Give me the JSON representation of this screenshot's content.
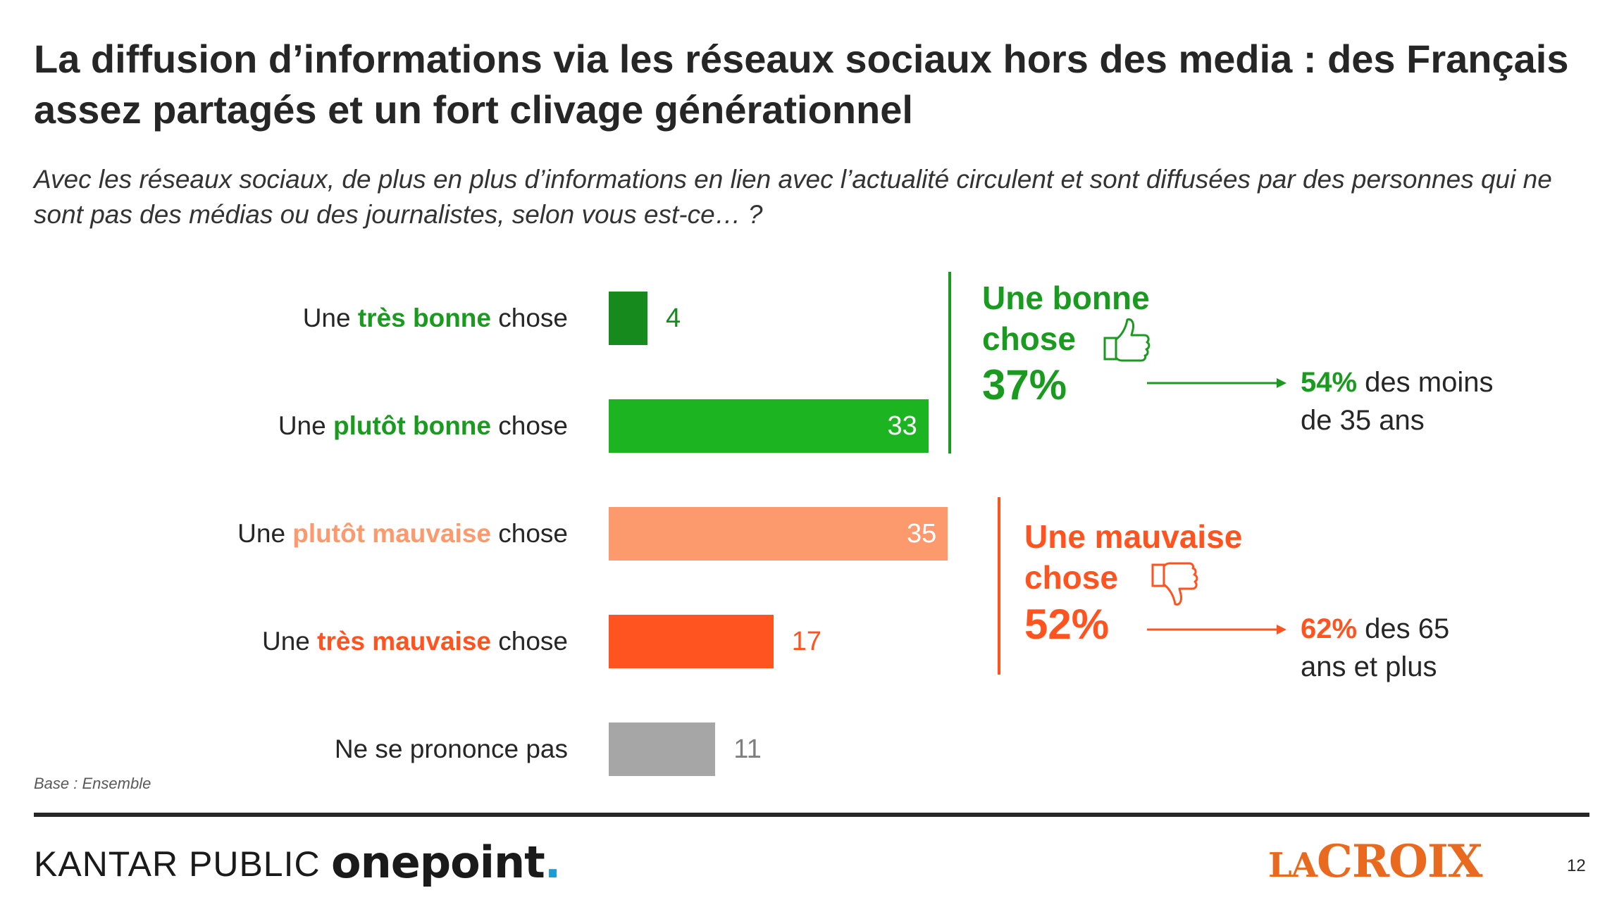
{
  "title": "La diffusion d’informations via les réseaux sociaux hors des media : des Français assez partagés et un fort clivage générationnel",
  "subtitle": "Avec les réseaux sociaux, de plus en plus d’informations en lien avec l’actualité circulent et sont diffusées par des personnes qui ne sont pas des médias ou des journalistes, selon vous est-ce… ?",
  "colors": {
    "very_good": "#168a1c",
    "good": "#1db422",
    "bad": "#fc9a6e",
    "very_bad": "#ff5320",
    "none": "#a6a6a6",
    "good_text": "#1a9a1f",
    "bad_text": "#ff5320",
    "light_bad_text": "#fc9a6e"
  },
  "chart_data": {
    "type": "bar",
    "orientation": "horizontal",
    "categories": [
      {
        "pre": "Une ",
        "highlight": "très bonne",
        "post": " chose"
      },
      {
        "pre": "Une ",
        "highlight": "plutôt bonne",
        "post": " chose"
      },
      {
        "pre": "Une ",
        "highlight": "plutôt mauvaise",
        "post": " chose"
      },
      {
        "pre": "Une ",
        "highlight": "très mauvaise",
        "post": " chose"
      },
      {
        "pre": "Ne se prononce pas",
        "highlight": "",
        "post": ""
      }
    ],
    "values": [
      4,
      33,
      35,
      17,
      11
    ],
    "value_labels": [
      "4",
      "33",
      "35",
      "17",
      "11"
    ],
    "grid": false,
    "legend": "none"
  },
  "groups": {
    "good": {
      "title_line1": "Une bonne",
      "title_line2": "chose",
      "percent": "37%",
      "icon": "thumbs-up-icon",
      "note_bold": "54%",
      "note_rest_line1": " des moins",
      "note_line2": "de 35 ans"
    },
    "bad": {
      "title_line1": "Une mauvaise",
      "title_line2": "chose",
      "percent": "52%",
      "icon": "thumbs-down-icon",
      "note_bold": "62%",
      "note_rest_line1": " des 65",
      "note_line2": "ans et plus"
    }
  },
  "base_note": "Base : Ensemble",
  "footer": {
    "kantar": "KANTAR PUBLIC",
    "onepoint": "onepoint",
    "onepoint_dot": ".",
    "lacroix_first": "LA",
    "lacroix_rest": "CROIX",
    "page_number": "12"
  }
}
